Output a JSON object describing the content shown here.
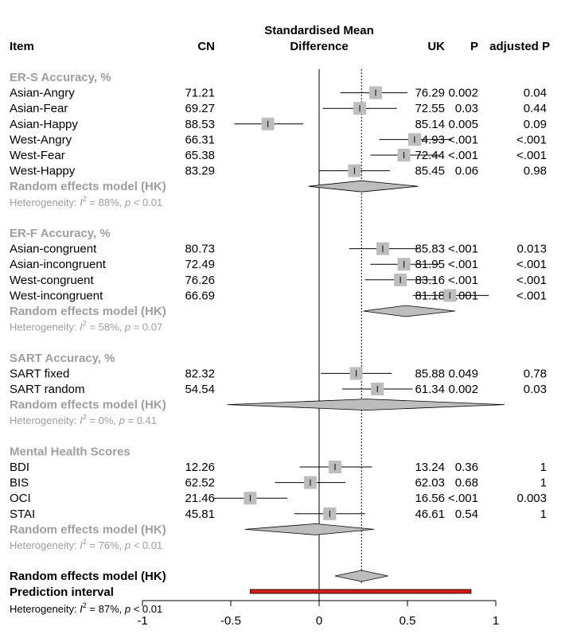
{
  "chart_data": {
    "type": "forest",
    "columns": {
      "item": "Item",
      "cn": "CN",
      "smd_line1": "Standardised Mean",
      "smd_line2": "Difference",
      "uk": "UK",
      "p": "P",
      "adj_p": "adjusted P"
    },
    "x_ticks": [
      "-1",
      "-0.5",
      "0",
      "0.5",
      "1"
    ],
    "xlim": [
      -1,
      1
    ],
    "reference_line": 0,
    "overall_line": 0.24,
    "groups": [
      {
        "title": "ER-S Accuracy, %",
        "rows": [
          {
            "label": "Asian-Angry",
            "cn": "71.21",
            "uk": "76.29",
            "p": "0.002",
            "adj_p": "0.04",
            "est": 0.32,
            "lo": 0.12,
            "hi": 0.5,
            "w": 1.0
          },
          {
            "label": "Asian-Fear",
            "cn": "69.27",
            "uk": "72.55",
            "p": "0.03",
            "adj_p": "0.44",
            "est": 0.23,
            "lo": 0.02,
            "hi": 0.44,
            "w": 1.0
          },
          {
            "label": "Asian-Happy",
            "cn": "88.53",
            "uk": "85.14",
            "p": "0.005",
            "adj_p": "0.09",
            "est": -0.29,
            "lo": -0.48,
            "hi": -0.09,
            "w": 1.0
          },
          {
            "label": "West-Angry",
            "cn": "66.31",
            "uk": "74.93",
            "p": "<.001",
            "adj_p": "<.001",
            "est": 0.54,
            "lo": 0.34,
            "hi": 0.75,
            "w": 1.0
          },
          {
            "label": "West-Fear",
            "cn": "65.38",
            "uk": "72.44",
            "p": "<.001",
            "adj_p": "<.001",
            "est": 0.48,
            "lo": 0.29,
            "hi": 0.68,
            "w": 1.0
          },
          {
            "label": "West-Happy",
            "cn": "83.29",
            "uk": "85.45",
            "p": "0.06",
            "adj_p": "0.98",
            "est": 0.2,
            "lo": 0.0,
            "hi": 0.4,
            "w": 1.0
          }
        ],
        "pooled": {
          "label": "Random effects model (HK)",
          "est": 0.24,
          "lo": -0.06,
          "hi": 0.56
        },
        "het": {
          "prefix": "Heterogeneity: ",
          "i2": "I",
          "sup": "2",
          "mid": " = 88%, ",
          "pvar": "p",
          "suffix": " < 0.01"
        }
      },
      {
        "title": "ER-F Accuracy, %",
        "rows": [
          {
            "label": "Asian-congruent",
            "cn": "80.73",
            "uk": "85.83",
            "p": "<.001",
            "adj_p": "0.013",
            "est": 0.36,
            "lo": 0.17,
            "hi": 0.56,
            "w": 1.0
          },
          {
            "label": "Asian-incongruent",
            "cn": "72.49",
            "uk": "81.95",
            "p": "<.001",
            "adj_p": "<.001",
            "est": 0.48,
            "lo": 0.29,
            "hi": 0.68,
            "w": 1.0
          },
          {
            "label": "West-congruent",
            "cn": "76.26",
            "uk": "83.16",
            "p": "<.001",
            "adj_p": "<.001",
            "est": 0.46,
            "lo": 0.26,
            "hi": 0.66,
            "w": 1.0
          },
          {
            "label": "West-incongruent",
            "cn": "66.69",
            "uk": "81.18",
            "p": "<.001",
            "adj_p": "<.001",
            "est": 0.74,
            "lo": 0.53,
            "hi": 0.96,
            "w": 1.0
          }
        ],
        "pooled": {
          "label": "Random effects model (HK)",
          "est": 0.49,
          "lo": 0.25,
          "hi": 0.77
        },
        "het": {
          "prefix": "Heterogeneity: ",
          "i2": "I",
          "sup": "2",
          "mid": " = 58%, ",
          "pvar": "p",
          "suffix": " = 0.07"
        }
      },
      {
        "title": "SART Accuracy, %",
        "rows": [
          {
            "label": "SART fixed",
            "cn": "82.32",
            "uk": "85.88",
            "p": "0.049",
            "adj_p": "0.78",
            "est": 0.21,
            "lo": 0.01,
            "hi": 0.41,
            "w": 1.0
          },
          {
            "label": "SART random",
            "cn": "54.54",
            "uk": "61.34",
            "p": "0.002",
            "adj_p": "0.03",
            "est": 0.33,
            "lo": 0.13,
            "hi": 0.53,
            "w": 1.0
          }
        ],
        "pooled": {
          "label": "Random effects model (HK)",
          "est": 0.27,
          "lo": -0.52,
          "hi": 1.05
        },
        "het": {
          "prefix": "Heterogeneity: ",
          "i2": "I",
          "sup": "2",
          "mid": " = 0%, ",
          "pvar": "p",
          "suffix": " = 0.41"
        }
      },
      {
        "title": "Mental Health Scores",
        "rows": [
          {
            "label": "BDI",
            "cn": "12.26",
            "uk": "13.24",
            "p": "0.36",
            "adj_p": "1",
            "est": 0.09,
            "lo": -0.11,
            "hi": 0.3,
            "w": 1.0
          },
          {
            "label": "BIS",
            "cn": "62.52",
            "uk": "62.03",
            "p": "0.68",
            "adj_p": "1",
            "est": -0.05,
            "lo": -0.25,
            "hi": 0.15,
            "w": 1.0
          },
          {
            "label": "OCI",
            "cn": "21.46",
            "uk": "16.56",
            "p": "<.001",
            "adj_p": "0.003",
            "est": -0.39,
            "lo": -0.6,
            "hi": -0.18,
            "w": 1.0
          },
          {
            "label": "STAI",
            "cn": "45.81",
            "uk": "46.61",
            "p": "0.54",
            "adj_p": "1",
            "est": 0.06,
            "lo": -0.14,
            "hi": 0.26,
            "w": 1.0
          }
        ],
        "pooled": {
          "label": "Random effects model (HK)",
          "est": -0.02,
          "lo": -0.42,
          "hi": 0.31
        },
        "het": {
          "prefix": "Heterogeneity: ",
          "i2": "I",
          "sup": "2",
          "mid": " = 76%, ",
          "pvar": "p",
          "suffix": " < 0.01"
        }
      }
    ],
    "overall": {
      "label": "Random effects model (HK)",
      "est": 0.24,
      "lo": 0.09,
      "hi": 0.39,
      "prediction_label": "Prediction interval",
      "prediction_lo": -0.39,
      "prediction_hi": 0.86,
      "prediction_color": "#d7191c",
      "het": {
        "prefix": "Heterogeneity: ",
        "i2": "I",
        "sup": "2",
        "mid": " = 87%, ",
        "pvar": "p",
        "suffix": " < 0.01"
      }
    },
    "colors": {
      "square": "#bdbdbd",
      "diamond": "#bdbdbd",
      "group_text": "#9e9e9e"
    }
  }
}
